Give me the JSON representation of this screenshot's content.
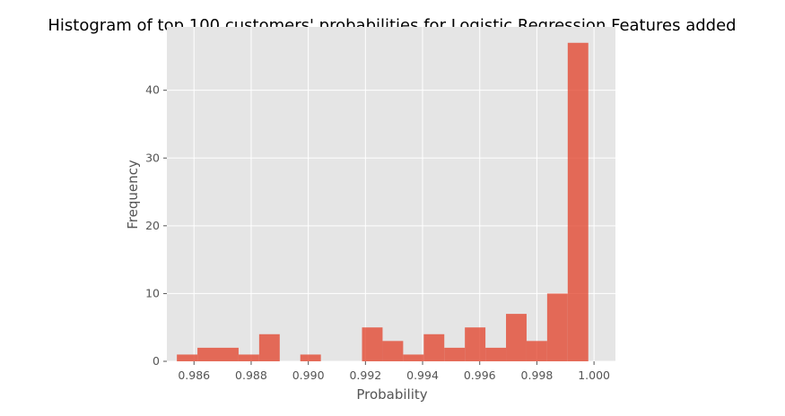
{
  "chart_data": {
    "type": "bar",
    "title": "Histogram of top 100 customers' probabilities for Logistic Regression Features added",
    "xlabel": "Probability",
    "ylabel": "Frequency",
    "xlim": [
      0.98505,
      1.00075
    ],
    "ylim": [
      0,
      49.35
    ],
    "x_ticks": [
      0.986,
      0.988,
      0.99,
      0.992,
      0.994,
      0.996,
      0.998,
      1.0
    ],
    "x_tick_labels": [
      "0.986",
      "0.988",
      "0.990",
      "0.992",
      "0.994",
      "0.996",
      "0.998",
      "1.000"
    ],
    "y_ticks": [
      0,
      10,
      20,
      30,
      40
    ],
    "y_tick_labels": [
      "0",
      "10",
      "20",
      "30",
      "40"
    ],
    "grid": true,
    "bins": [
      {
        "x0": 0.9854,
        "x1": 0.98612,
        "value": 1
      },
      {
        "x0": 0.98612,
        "x1": 0.98684,
        "value": 2
      },
      {
        "x0": 0.98684,
        "x1": 0.98756,
        "value": 2
      },
      {
        "x0": 0.98756,
        "x1": 0.98828,
        "value": 1
      },
      {
        "x0": 0.98828,
        "x1": 0.989,
        "value": 4
      },
      {
        "x0": 0.989,
        "x1": 0.98972,
        "value": 0
      },
      {
        "x0": 0.98972,
        "x1": 0.99044,
        "value": 1
      },
      {
        "x0": 0.99044,
        "x1": 0.99116,
        "value": 0
      },
      {
        "x0": 0.99116,
        "x1": 0.99188,
        "value": 0
      },
      {
        "x0": 0.99188,
        "x1": 0.9926,
        "value": 5
      },
      {
        "x0": 0.9926,
        "x1": 0.99332,
        "value": 3
      },
      {
        "x0": 0.99332,
        "x1": 0.99404,
        "value": 1
      },
      {
        "x0": 0.99404,
        "x1": 0.99476,
        "value": 4
      },
      {
        "x0": 0.99476,
        "x1": 0.99548,
        "value": 2
      },
      {
        "x0": 0.99548,
        "x1": 0.9962,
        "value": 5
      },
      {
        "x0": 0.9962,
        "x1": 0.99692,
        "value": 2
      },
      {
        "x0": 0.99692,
        "x1": 0.99764,
        "value": 7
      },
      {
        "x0": 0.99764,
        "x1": 0.99836,
        "value": 3
      },
      {
        "x0": 0.99836,
        "x1": 0.99908,
        "value": 10
      },
      {
        "x0": 0.99908,
        "x1": 0.9998,
        "value": 47
      }
    ]
  },
  "colors": {
    "plot_background": "#e5e5e5",
    "bar_fill": "#e24a33",
    "bar_opacity": 0.8,
    "grid": "#ffffff",
    "text": "#555555",
    "title_text": "#000000"
  }
}
